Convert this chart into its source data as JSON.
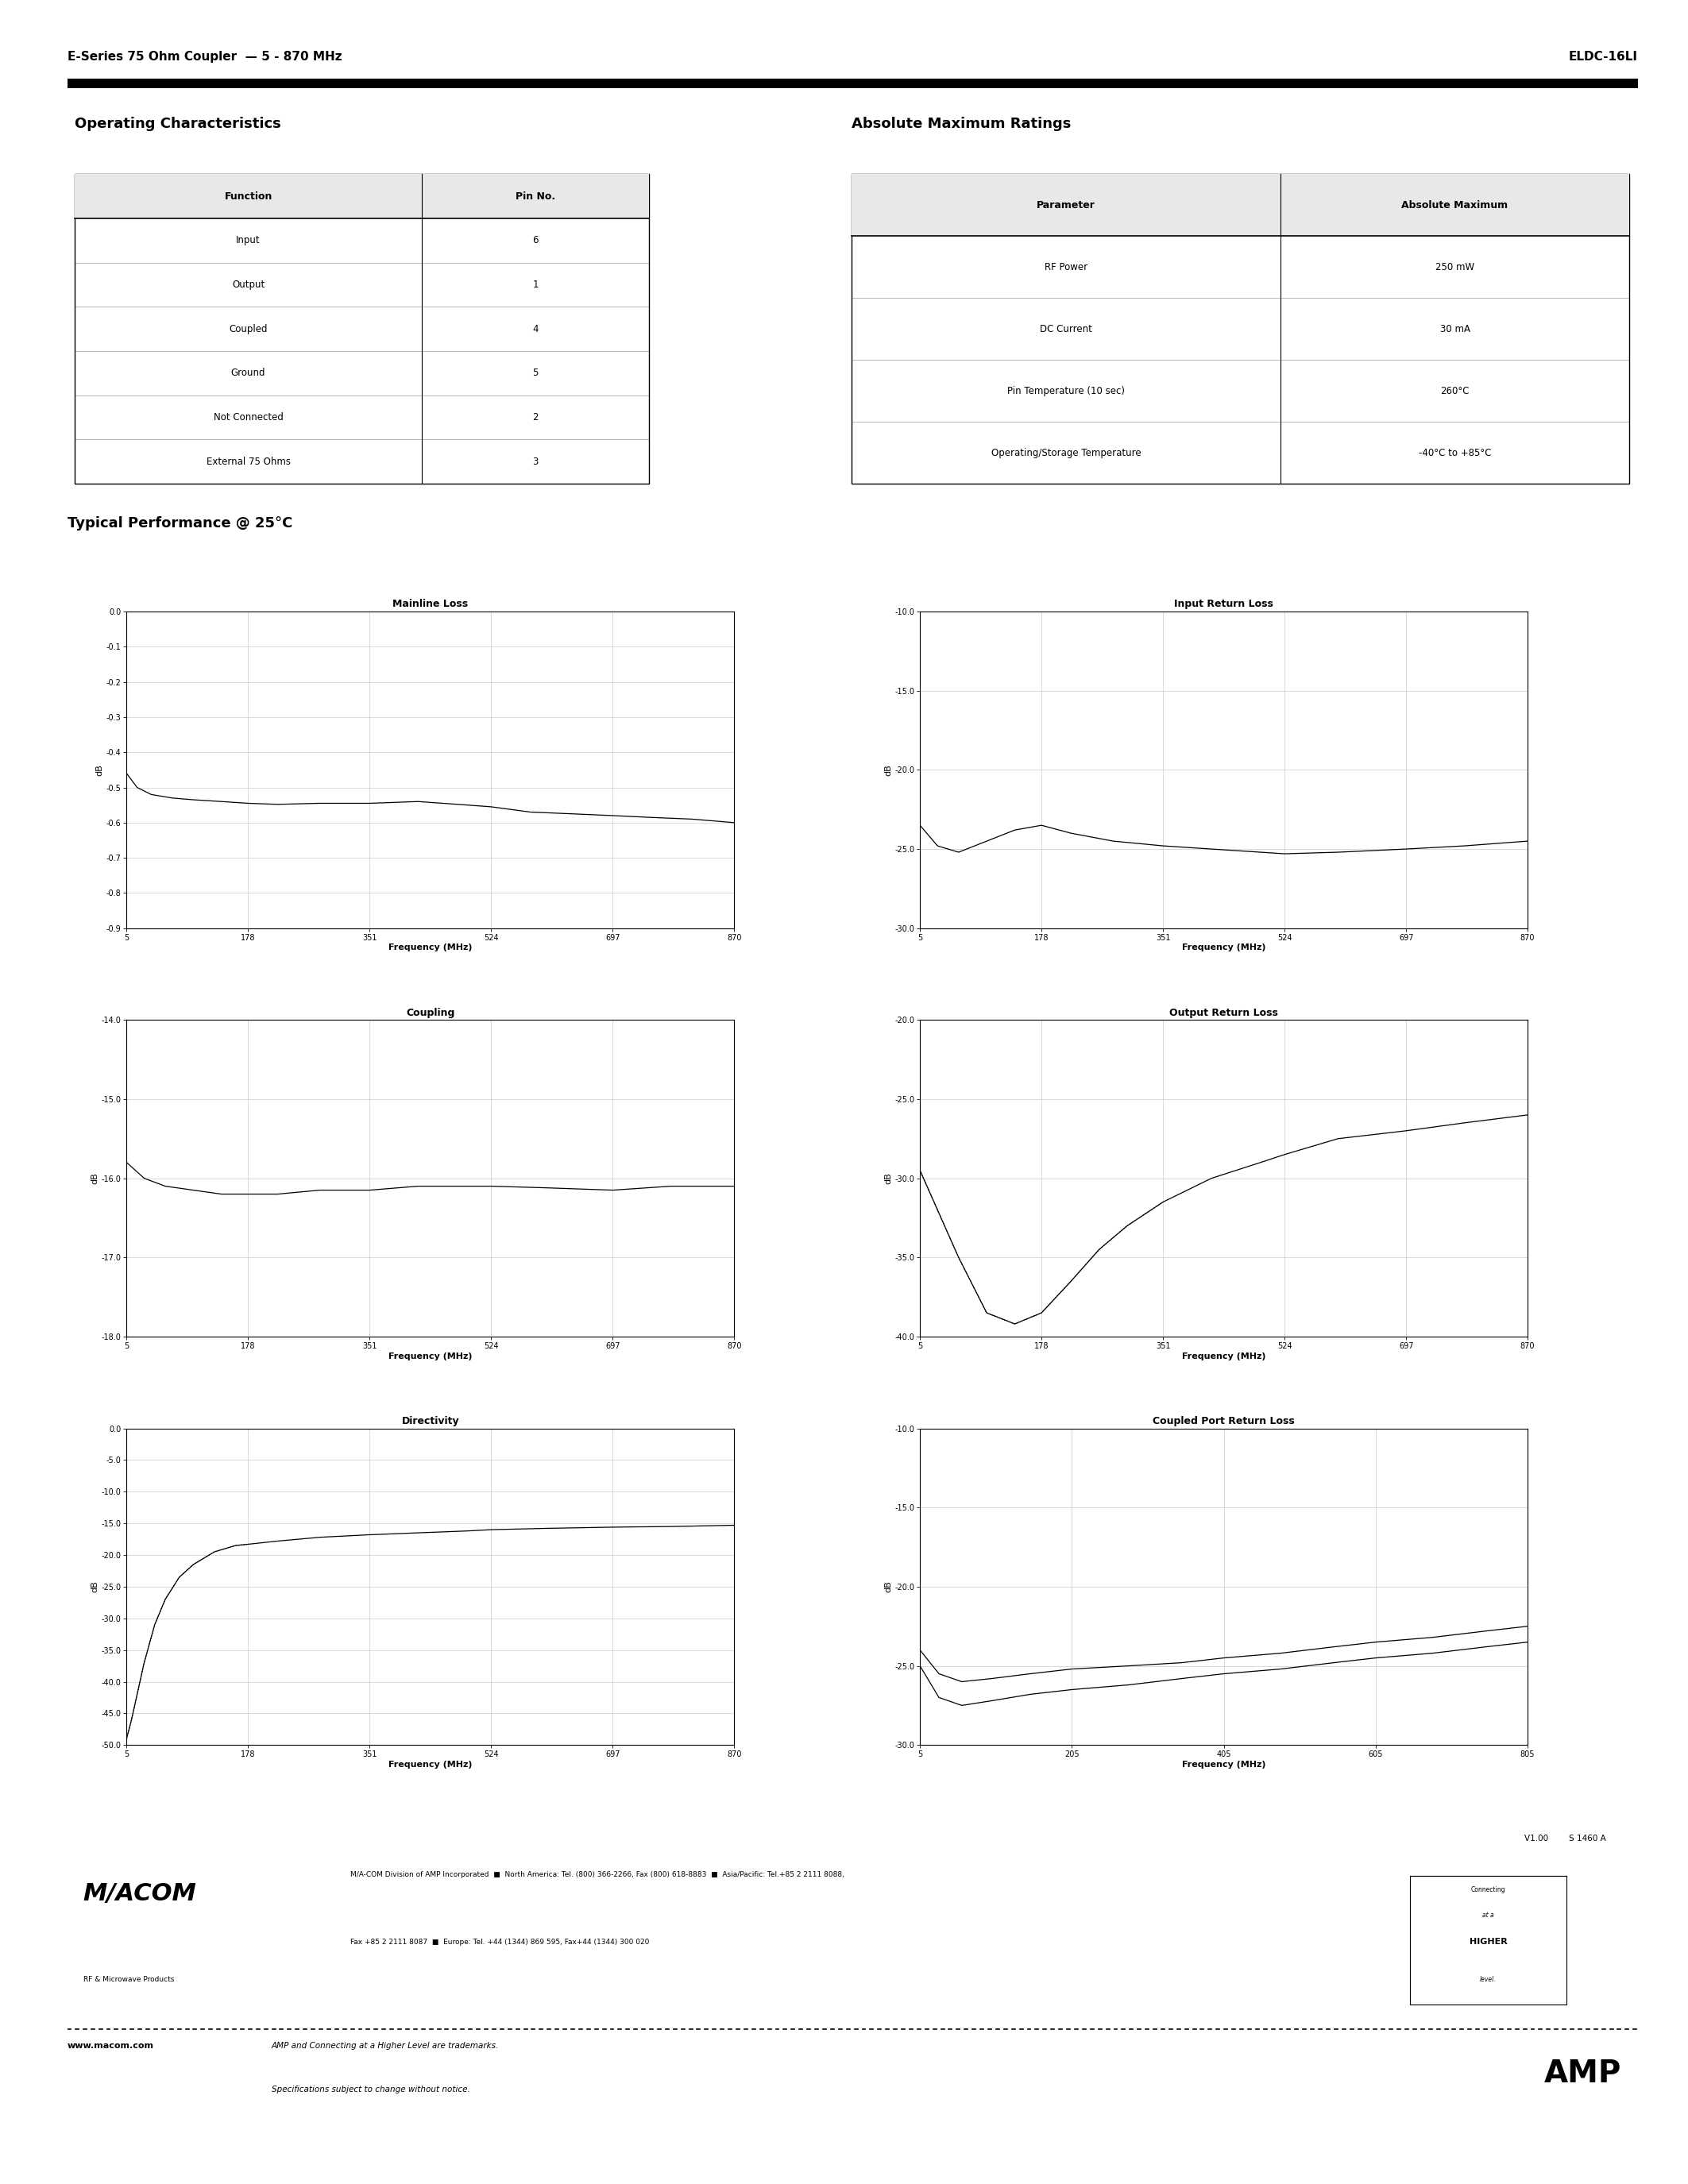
{
  "header_left": "E-Series 75 Ohm Coupler  — 5 - 870 MHz",
  "header_right": "ELDC-16LI",
  "section1_title": "Operating Characteristics",
  "oc_headers": [
    "Function",
    "Pin No."
  ],
  "oc_rows": [
    [
      "Input",
      "6"
    ],
    [
      "Output",
      "1"
    ],
    [
      "Coupled",
      "4"
    ],
    [
      "Ground",
      "5"
    ],
    [
      "Not Connected",
      "2"
    ],
    [
      "External 75 Ohms",
      "3"
    ]
  ],
  "section2_title": "Absolute Maximum Ratings",
  "amr_headers": [
    "Parameter",
    "Absolute Maximum"
  ],
  "amr_rows": [
    [
      "RF Power",
      "250 mW"
    ],
    [
      "DC Current",
      "30 mA"
    ],
    [
      "Pin Temperature (10 sec)",
      "260°C"
    ],
    [
      "Operating/Storage Temperature",
      "-40°C to +85°C"
    ]
  ],
  "typical_title": "Typical Performance @ 25°C",
  "plots": {
    "mainline_loss": {
      "title": "Mainline Loss",
      "xlabel": "Frequency (MHz)",
      "ylabel": "dB",
      "xlim": [
        5,
        870
      ],
      "ylim": [
        -0.9,
        0.0
      ],
      "xticks": [
        5,
        178,
        351,
        524,
        697,
        870
      ],
      "xtick_labels": [
        "5",
        "178",
        "351",
        "524",
        "697",
        "870"
      ],
      "yticks": [
        0.0,
        -0.1,
        -0.2,
        -0.3,
        -0.4,
        -0.5,
        -0.6,
        -0.7,
        -0.8,
        -0.9
      ],
      "ytick_labels": [
        "0.0",
        "-0.1",
        "-0.2",
        "-0.3",
        "-0.4",
        "-0.5",
        "-0.6",
        "-0.7",
        "-0.8",
        "-0.9"
      ],
      "curve_x": [
        5,
        20,
        40,
        70,
        100,
        140,
        178,
        220,
        280,
        351,
        420,
        490,
        524,
        580,
        640,
        697,
        750,
        810,
        870
      ],
      "curve_y": [
        -0.46,
        -0.5,
        -0.52,
        -0.53,
        -0.535,
        -0.54,
        -0.545,
        -0.548,
        -0.545,
        -0.545,
        -0.54,
        -0.55,
        -0.555,
        -0.57,
        -0.575,
        -0.58,
        -0.585,
        -0.59,
        -0.6
      ],
      "curve_style": "solid"
    },
    "input_return_loss": {
      "title": "Input Return Loss",
      "xlabel": "Frequency (MHz)",
      "ylabel": "dB",
      "xlim": [
        5,
        870
      ],
      "ylim": [
        -30.0,
        -10.0
      ],
      "xticks": [
        5,
        178,
        351,
        524,
        697,
        870
      ],
      "xtick_labels": [
        "5",
        "178",
        "351",
        "524",
        "697",
        "870"
      ],
      "yticks": [
        -10.0,
        -15.0,
        -20.0,
        -25.0,
        -30.0
      ],
      "ytick_labels": [
        "-10.0",
        "-15.0",
        "-20.0",
        "-25.0",
        "-30.0"
      ],
      "curve_x": [
        5,
        30,
        60,
        100,
        140,
        178,
        220,
        280,
        351,
        420,
        490,
        524,
        600,
        697,
        780,
        870
      ],
      "curve_y": [
        -23.5,
        -24.8,
        -25.2,
        -24.5,
        -23.8,
        -23.5,
        -24.0,
        -24.5,
        -24.8,
        -25.0,
        -25.2,
        -25.3,
        -25.2,
        -25.0,
        -24.8,
        -24.5
      ],
      "curve_style": "solid"
    },
    "coupling": {
      "title": "Coupling",
      "xlabel": "Frequency (MHz)",
      "ylabel": "dB",
      "xlim": [
        5,
        870
      ],
      "ylim": [
        -18.0,
        -14.0
      ],
      "xticks": [
        5,
        178,
        351,
        524,
        697,
        870
      ],
      "xtick_labels": [
        "5",
        "178",
        "351",
        "524",
        "697",
        "870"
      ],
      "yticks": [
        -14.0,
        -15.0,
        -16.0,
        -17.0,
        -18.0
      ],
      "ytick_labels": [
        "-14.0",
        "-15.0",
        "-16.0",
        "-17.0",
        "-18.0"
      ],
      "curve_x": [
        5,
        30,
        60,
        100,
        140,
        178,
        220,
        280,
        351,
        420,
        490,
        524,
        600,
        697,
        780,
        870
      ],
      "curve_y": [
        -15.8,
        -16.0,
        -16.1,
        -16.15,
        -16.2,
        -16.2,
        -16.2,
        -16.15,
        -16.15,
        -16.1,
        -16.1,
        -16.1,
        -16.12,
        -16.15,
        -16.1,
        -16.1
      ],
      "curve_style": "solid"
    },
    "output_return_loss": {
      "title": "Output Return Loss",
      "xlabel": "Frequency (MHz)",
      "ylabel": "dB",
      "xlim": [
        5,
        870
      ],
      "ylim": [
        -40.0,
        -20.0
      ],
      "xticks": [
        5,
        178,
        351,
        524,
        697,
        870
      ],
      "xtick_labels": [
        "5",
        "178",
        "351",
        "524",
        "697",
        "870"
      ],
      "yticks": [
        -20.0,
        -25.0,
        -30.0,
        -35.0,
        -40.0
      ],
      "ytick_labels": [
        "-20.0",
        "-25.0",
        "-30.0",
        "-35.0",
        "-40.0"
      ],
      "curve_x": [
        5,
        30,
        60,
        100,
        140,
        178,
        220,
        260,
        300,
        351,
        420,
        490,
        524,
        600,
        697,
        780,
        870
      ],
      "curve_y": [
        -29.5,
        -32.0,
        -35.0,
        -38.5,
        -39.2,
        -38.5,
        -36.5,
        -34.5,
        -33.0,
        -31.5,
        -30.0,
        -29.0,
        -28.5,
        -27.5,
        -27.0,
        -26.5,
        -26.0
      ],
      "curve_x_dot": [
        5,
        30,
        60,
        100,
        140,
        178,
        220,
        260,
        300,
        351
      ],
      "curve_y_dot": [
        -29.5,
        -32.0,
        -35.0,
        -38.5,
        -39.2,
        -38.5,
        -36.5,
        -34.5,
        -33.0,
        -31.5
      ],
      "curve_style": "solid"
    },
    "directivity": {
      "title": "Directivity",
      "xlabel": "Frequency (MHz)",
      "ylabel": "dB",
      "xlim": [
        5,
        870
      ],
      "ylim": [
        -50.0,
        0.0
      ],
      "xticks": [
        5,
        178,
        351,
        524,
        697,
        870
      ],
      "xtick_labels": [
        "5",
        "178",
        "351",
        "524",
        "697",
        "870"
      ],
      "yticks": [
        0.0,
        -5.0,
        -10.0,
        -15.0,
        -20.0,
        -25.0,
        -30.0,
        -35.0,
        -40.0,
        -45.0,
        -50.0
      ],
      "ytick_labels": [
        "0.0",
        "-5.0",
        "-10.0",
        "-15.0",
        "-20.0",
        "-25.0",
        "-30.0",
        "-35.0",
        "-40.0",
        "-45.0",
        "-50.0"
      ],
      "curve_x": [
        5,
        12,
        20,
        30,
        45,
        60,
        80,
        100,
        130,
        160,
        178,
        220,
        280,
        351,
        420,
        490,
        524,
        600,
        697,
        780,
        870
      ],
      "curve_y": [
        -49.0,
        -46.0,
        -42.0,
        -37.0,
        -31.0,
        -27.0,
        -23.5,
        -21.5,
        -19.5,
        -18.5,
        -18.3,
        -17.8,
        -17.2,
        -16.8,
        -16.5,
        -16.2,
        -16.0,
        -15.8,
        -15.6,
        -15.5,
        -15.3
      ],
      "curve_x_dot": [
        5,
        12,
        20,
        30,
        45,
        60,
        80,
        100,
        130,
        160,
        178
      ],
      "curve_y_dot": [
        -49.0,
        -46.0,
        -42.0,
        -37.0,
        -31.0,
        -27.0,
        -23.5,
        -21.5,
        -19.5,
        -18.5,
        -18.3
      ],
      "curve_style": "solid"
    },
    "coupled_port_return_loss": {
      "title": "Coupled Port Return Loss",
      "xlabel": "Frequency (MHz)",
      "ylabel": "dB",
      "xlim": [
        5,
        805
      ],
      "ylim": [
        -30.0,
        -10.0
      ],
      "xticks": [
        5,
        205,
        405,
        605,
        805
      ],
      "xtick_labels": [
        "5",
        "205",
        "405",
        "605",
        "805"
      ],
      "yticks": [
        -10.0,
        -15.0,
        -20.0,
        -25.0,
        -30.0
      ],
      "ytick_labels": [
        "-10.0",
        "-15.0",
        "-20.0",
        "-25.0",
        "-30.0"
      ],
      "curve_x1": [
        5,
        30,
        60,
        100,
        150,
        205,
        280,
        350,
        405,
        480,
        550,
        605,
        680,
        750,
        805
      ],
      "curve_y1": [
        -25.0,
        -27.0,
        -27.5,
        -27.2,
        -26.8,
        -26.5,
        -26.2,
        -25.8,
        -25.5,
        -25.2,
        -24.8,
        -24.5,
        -24.2,
        -23.8,
        -23.5
      ],
      "curve_x2": [
        5,
        30,
        60,
        100,
        150,
        205,
        280,
        350,
        405,
        480,
        550,
        605,
        680,
        750,
        805
      ],
      "curve_y2": [
        -24.0,
        -25.5,
        -26.0,
        -25.8,
        -25.5,
        -25.2,
        -25.0,
        -24.8,
        -24.5,
        -24.2,
        -23.8,
        -23.5,
        -23.2,
        -22.8,
        -22.5
      ]
    }
  },
  "footer_version": "V1.00        S 1460 A",
  "footer_company": "M/A-COM Division of AMP Incorporated",
  "footer_na": "North America: Tel. (800) 366-2266, Fax (800) 618-8883",
  "footer_ap": "Asia/Pacific: Tel.+85 2 2111 8088,",
  "footer_fax_line": "Fax +85 2 2111 8087",
  "footer_eu": "Europe: Tel. +44 (1344) 869 595, Fax+44 (1344) 300 020",
  "footer_web": "www.macom.com",
  "footer_amp": "AMP and Connecting at a Higher Level are trademarks.",
  "footer_spec": "Specifications subject to change without notice.",
  "bg_color": "#ffffff"
}
